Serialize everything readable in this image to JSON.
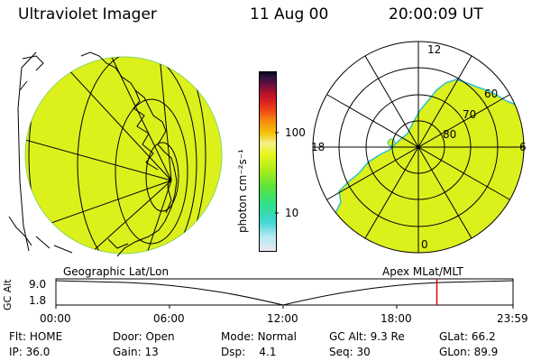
{
  "header": {
    "instrument": "Ultraviolet Imager",
    "date": "11 Aug 00",
    "time": "20:00:09 UT"
  },
  "colorbar": {
    "unit_label": "photon cm⁻²s⁻¹",
    "ticks": [
      "100",
      "10"
    ],
    "colors": [
      "#e8e8ee",
      "#b5eaf0",
      "#42d6d6",
      "#2ee08a",
      "#5de33a",
      "#b2ee19",
      "#e8f51c",
      "#f3f08a",
      "#f5c30a",
      "#f7900e",
      "#ee4f17",
      "#d81d20",
      "#a8132c",
      "#6a1040",
      "#2e1440",
      "#080818"
    ]
  },
  "geo_panel": {
    "label": "Geographic Lat/Lon",
    "fill_color": "#dcf01c"
  },
  "polar_panel": {
    "label": "Apex  MLat/MLT",
    "fill_color": "#dcf01c",
    "mlt_labels": {
      "top": "12",
      "left": "18",
      "right": "6",
      "bottom": "0"
    },
    "lat_labels": [
      "60",
      "70",
      "80"
    ]
  },
  "timeline": {
    "y_axis_title": "GC Alt",
    "y_max": "9.0",
    "y_min": "1.8",
    "x_ticks": [
      "00:00",
      "06:00",
      "12:00",
      "18:00",
      "23:59"
    ],
    "current_time_hours": 20.0,
    "marker_color": "#e00000"
  },
  "status": {
    "flt_label": "Flt:",
    "flt_value": "HOME",
    "ip_label": "IP:",
    "ip_value": "36.0",
    "door_label": "Door:",
    "door_value": "Open",
    "gain_label": "Gain:",
    "gain_value": "13",
    "mode_label": "Mode:",
    "mode_value": "Normal",
    "dsp_label": "Dsp:",
    "dsp_value": "4.1",
    "gcalt_label": "GC Alt:",
    "gcalt_value": "9.3 Re",
    "seq_label": "Seq:",
    "seq_value": "30",
    "glat_label": "GLat:",
    "glat_value": "66.2",
    "glon_label": "GLon:",
    "glon_value": "89.9"
  }
}
